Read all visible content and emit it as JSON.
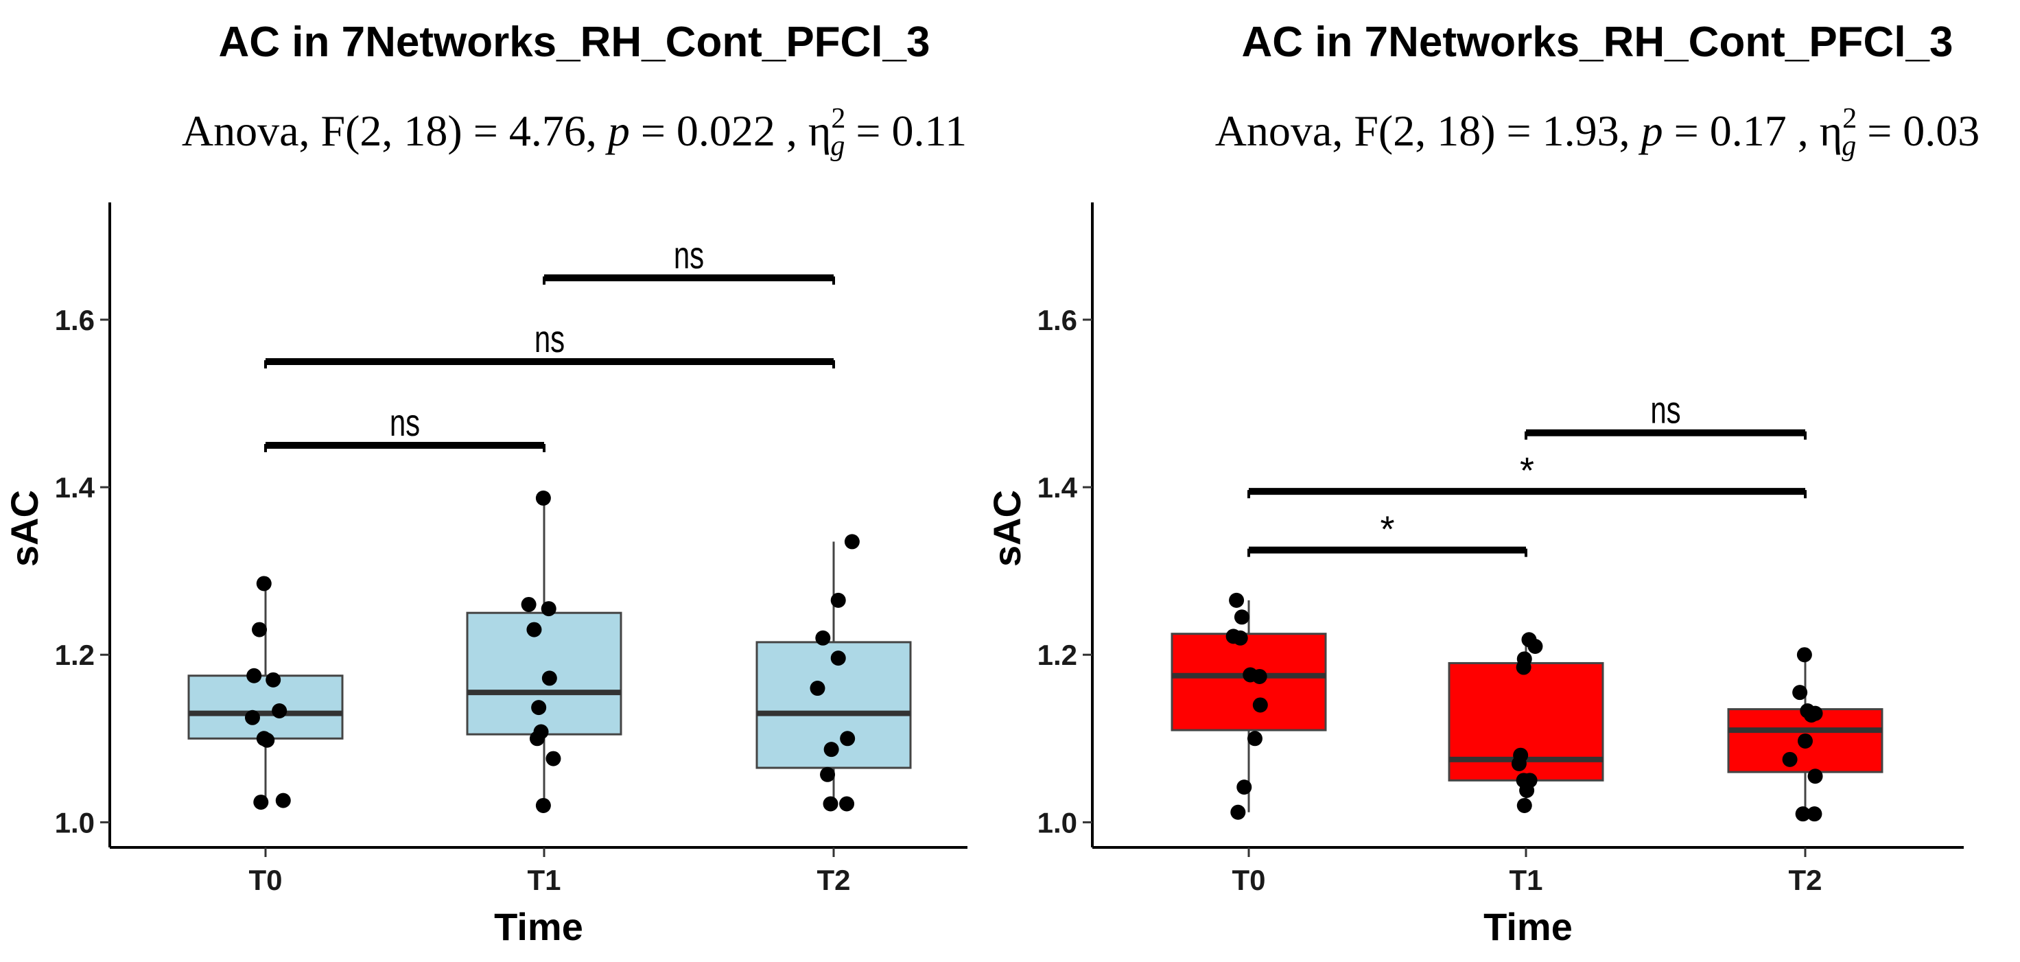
{
  "chart_data": [
    {
      "type": "box",
      "title": "AC in 7Networks_RH_Cont_PFCl_3",
      "subtitle": {
        "prefix": "Anova, F(2, 18) = 4.76, ",
        "p_symbol": "p",
        "p_text": " = 0.022 , ",
        "eta_symbol": "η",
        "eta_sub": "g",
        "eta_sup": "2",
        "eta_text": " = 0.11"
      },
      "xlabel": "Time",
      "ylabel": "sAC",
      "ylim": [
        0.97,
        1.74
      ],
      "yticks": [
        1.0,
        1.2,
        1.4,
        1.6
      ],
      "ytick_labels": [
        "1.0",
        "1.2",
        "1.4",
        "1.6"
      ],
      "categories": [
        "T0",
        "T1",
        "T2"
      ],
      "box_color": "#add8e6",
      "boxes": [
        {
          "category": "T0",
          "whisker_low": 1.025,
          "q1": 1.1,
          "median": 1.13,
          "q3": 1.175,
          "whisker_high": 1.285
        },
        {
          "category": "T1",
          "whisker_low": 1.02,
          "q1": 1.105,
          "median": 1.155,
          "q3": 1.25,
          "whisker_high": 1.385
        },
        {
          "category": "T2",
          "whisker_low": 1.022,
          "q1": 1.065,
          "median": 1.13,
          "q3": 1.215,
          "whisker_high": 1.335
        }
      ],
      "points": [
        {
          "category": "T0",
          "jitter": -0.02,
          "y": 1.285
        },
        {
          "category": "T0",
          "jitter": -0.08,
          "y": 1.23
        },
        {
          "category": "T0",
          "jitter": -0.15,
          "y": 1.175
        },
        {
          "category": "T0",
          "jitter": 0.1,
          "y": 1.17
        },
        {
          "category": "T0",
          "jitter": 0.18,
          "y": 1.133
        },
        {
          "category": "T0",
          "jitter": -0.17,
          "y": 1.125
        },
        {
          "category": "T0",
          "jitter": -0.02,
          "y": 1.1
        },
        {
          "category": "T0",
          "jitter": 0.02,
          "y": 1.098
        },
        {
          "category": "T0",
          "jitter": -0.06,
          "y": 1.024
        },
        {
          "category": "T0",
          "jitter": 0.23,
          "y": 1.026
        },
        {
          "category": "T1",
          "jitter": -0.01,
          "y": 1.387
        },
        {
          "category": "T1",
          "jitter": -0.2,
          "y": 1.26
        },
        {
          "category": "T1",
          "jitter": 0.06,
          "y": 1.255
        },
        {
          "category": "T1",
          "jitter": -0.13,
          "y": 1.23
        },
        {
          "category": "T1",
          "jitter": 0.07,
          "y": 1.172
        },
        {
          "category": "T1",
          "jitter": -0.07,
          "y": 1.137
        },
        {
          "category": "T1",
          "jitter": -0.04,
          "y": 1.108
        },
        {
          "category": "T1",
          "jitter": -0.09,
          "y": 1.1
        },
        {
          "category": "T1",
          "jitter": 0.12,
          "y": 1.076
        },
        {
          "category": "T1",
          "jitter": -0.01,
          "y": 1.02
        },
        {
          "category": "T2",
          "jitter": 0.24,
          "y": 1.335
        },
        {
          "category": "T2",
          "jitter": 0.06,
          "y": 1.265
        },
        {
          "category": "T2",
          "jitter": -0.14,
          "y": 1.22
        },
        {
          "category": "T2",
          "jitter": 0.06,
          "y": 1.196
        },
        {
          "category": "T2",
          "jitter": -0.21,
          "y": 1.16
        },
        {
          "category": "T2",
          "jitter": 0.18,
          "y": 1.1
        },
        {
          "category": "T2",
          "jitter": -0.03,
          "y": 1.087
        },
        {
          "category": "T2",
          "jitter": -0.08,
          "y": 1.057
        },
        {
          "category": "T2",
          "jitter": -0.04,
          "y": 1.022
        },
        {
          "category": "T2",
          "jitter": 0.17,
          "y": 1.022
        }
      ],
      "comparisons": [
        {
          "from": "T0",
          "to": "T1",
          "y": 1.45,
          "label": "ns"
        },
        {
          "from": "T0",
          "to": "T2",
          "y": 1.55,
          "label": "ns"
        },
        {
          "from": "T1",
          "to": "T2",
          "y": 1.65,
          "label": "ns"
        }
      ]
    },
    {
      "type": "box",
      "title": "AC in 7Networks_RH_Cont_PFCl_3",
      "subtitle": {
        "prefix": "Anova, F(2, 18) = 1.93, ",
        "p_symbol": "p",
        "p_text": " = 0.17 , ",
        "eta_symbol": "η",
        "eta_sub": "g",
        "eta_sup": "2",
        "eta_text": " = 0.03"
      },
      "xlabel": "Time",
      "ylabel": "sAC",
      "ylim": [
        0.97,
        1.74
      ],
      "yticks": [
        1.0,
        1.2,
        1.4,
        1.6
      ],
      "ytick_labels": [
        "1.0",
        "1.2",
        "1.4",
        "1.6"
      ],
      "categories": [
        "T0",
        "T1",
        "T2"
      ],
      "box_color": "#ff0000",
      "boxes": [
        {
          "category": "T0",
          "whisker_low": 1.012,
          "q1": 1.11,
          "median": 1.175,
          "q3": 1.225,
          "whisker_high": 1.265
        },
        {
          "category": "T1",
          "whisker_low": 1.02,
          "q1": 1.05,
          "median": 1.075,
          "q3": 1.19,
          "whisker_high": 1.218
        },
        {
          "category": "T2",
          "whisker_low": 1.01,
          "q1": 1.06,
          "median": 1.11,
          "q3": 1.135,
          "whisker_high": 1.2
        }
      ],
      "points": [
        {
          "category": "T0",
          "jitter": -0.16,
          "y": 1.265
        },
        {
          "category": "T0",
          "jitter": -0.09,
          "y": 1.245
        },
        {
          "category": "T0",
          "jitter": -0.11,
          "y": 1.22
        },
        {
          "category": "T0",
          "jitter": -0.2,
          "y": 1.222
        },
        {
          "category": "T0",
          "jitter": 0.02,
          "y": 1.176
        },
        {
          "category": "T0",
          "jitter": 0.14,
          "y": 1.174
        },
        {
          "category": "T0",
          "jitter": 0.15,
          "y": 1.14
        },
        {
          "category": "T0",
          "jitter": 0.08,
          "y": 1.1
        },
        {
          "category": "T0",
          "jitter": -0.06,
          "y": 1.042
        },
        {
          "category": "T0",
          "jitter": -0.14,
          "y": 1.012
        },
        {
          "category": "T1",
          "jitter": 0.04,
          "y": 1.218
        },
        {
          "category": "T1",
          "jitter": 0.12,
          "y": 1.21
        },
        {
          "category": "T1",
          "jitter": -0.02,
          "y": 1.195
        },
        {
          "category": "T1",
          "jitter": -0.03,
          "y": 1.185
        },
        {
          "category": "T1",
          "jitter": -0.07,
          "y": 1.08
        },
        {
          "category": "T1",
          "jitter": -0.09,
          "y": 1.07
        },
        {
          "category": "T1",
          "jitter": -0.03,
          "y": 1.05
        },
        {
          "category": "T1",
          "jitter": 0.05,
          "y": 1.05
        },
        {
          "category": "T1",
          "jitter": 0.01,
          "y": 1.038
        },
        {
          "category": "T1",
          "jitter": -0.02,
          "y": 1.02
        },
        {
          "category": "T2",
          "jitter": -0.01,
          "y": 1.2
        },
        {
          "category": "T2",
          "jitter": -0.07,
          "y": 1.155
        },
        {
          "category": "T2",
          "jitter": 0.03,
          "y": 1.133
        },
        {
          "category": "T2",
          "jitter": 0.08,
          "y": 1.128
        },
        {
          "category": "T2",
          "jitter": 0.13,
          "y": 1.13
        },
        {
          "category": "T2",
          "jitter": 0.0,
          "y": 1.097
        },
        {
          "category": "T2",
          "jitter": -0.2,
          "y": 1.075
        },
        {
          "category": "T2",
          "jitter": 0.13,
          "y": 1.055
        },
        {
          "category": "T2",
          "jitter": -0.03,
          "y": 1.01
        },
        {
          "category": "T2",
          "jitter": 0.12,
          "y": 1.01
        }
      ],
      "comparisons": [
        {
          "from": "T0",
          "to": "T1",
          "y": 1.325,
          "label": "*"
        },
        {
          "from": "T0",
          "to": "T2",
          "y": 1.395,
          "label": "*"
        },
        {
          "from": "T1",
          "to": "T2",
          "y": 1.465,
          "label": "ns"
        }
      ]
    }
  ]
}
